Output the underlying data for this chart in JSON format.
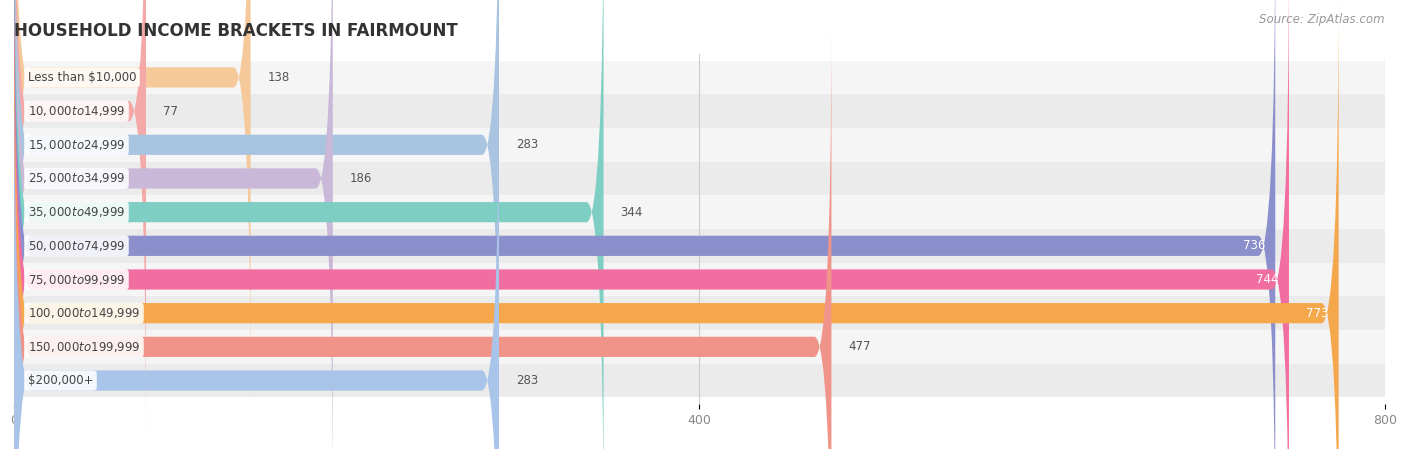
{
  "title": "HOUSEHOLD INCOME BRACKETS IN FAIRMOUNT",
  "source": "Source: ZipAtlas.com",
  "categories": [
    "Less than $10,000",
    "$10,000 to $14,999",
    "$15,000 to $24,999",
    "$25,000 to $34,999",
    "$35,000 to $49,999",
    "$50,000 to $74,999",
    "$75,000 to $99,999",
    "$100,000 to $149,999",
    "$150,000 to $199,999",
    "$200,000+"
  ],
  "values": [
    138,
    77,
    283,
    186,
    344,
    736,
    744,
    773,
    477,
    283
  ],
  "bar_colors": [
    "#F5C99A",
    "#F4A9A8",
    "#A8C4E0",
    "#C9B8D8",
    "#7ECEC4",
    "#8B8FCC",
    "#F06EA0",
    "#F5A84B",
    "#F0948A",
    "#A8C4E8"
  ],
  "row_bg_odd": "#F5F5F5",
  "row_bg_even": "#EBEBEB",
  "xlim": [
    0,
    800
  ],
  "xticks": [
    0,
    400,
    800
  ],
  "title_fontsize": 12,
  "label_fontsize": 8.5,
  "value_fontsize": 8.5,
  "source_fontsize": 8.5,
  "bar_height": 0.6,
  "value_threshold_inside": 500
}
